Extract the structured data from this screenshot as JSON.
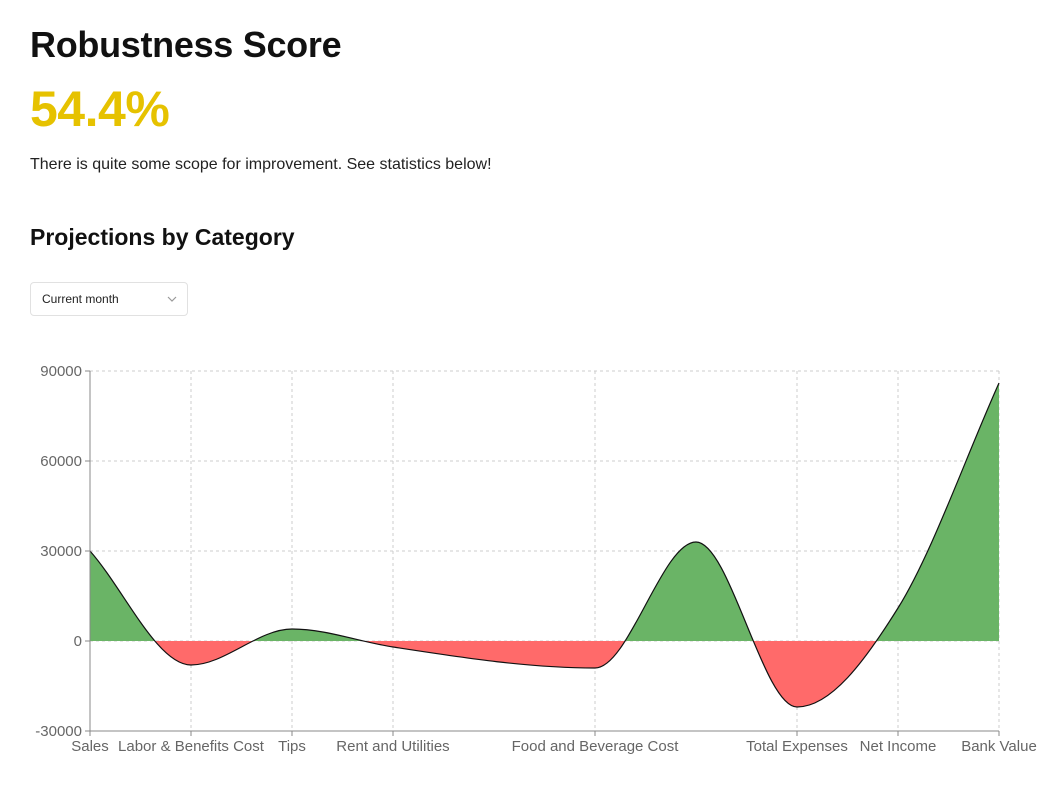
{
  "header": {
    "title": "Robustness Score",
    "score": "54.4%",
    "message": "There is quite some scope for improvement. See statistics below!"
  },
  "projections": {
    "section_title": "Projections by Category",
    "period_select": {
      "selected": "Current month"
    }
  },
  "colors": {
    "score": "#e6c200",
    "positive": "#6ab466",
    "negative": "#ff6a6a",
    "grid": "#cccccc",
    "axis_text": "#666666"
  },
  "chart_data": {
    "type": "area",
    "categories": [
      "Sales",
      "Labor & Benefits Cost",
      "Tips",
      "Rent and Utilities",
      "Food and Beverage Cost",
      "Total Expenses",
      "Net Income",
      "Bank Value"
    ],
    "x": [
      0,
      1,
      2,
      3,
      5,
      7,
      8,
      9
    ],
    "series": [
      {
        "name": "Projection",
        "values": [
          30000,
          -8000,
          4000,
          -2000,
          -9000,
          -22000,
          11000,
          86000
        ]
      }
    ],
    "control_points": [
      {
        "x": 6,
        "y": 33000
      }
    ],
    "ylim": [
      -30000,
      90000
    ],
    "yticks": [
      -30000,
      0,
      30000,
      60000,
      90000
    ],
    "ytick_labels": [
      "-30000",
      "0",
      "30000",
      "60000",
      "90000"
    ],
    "xlim": [
      0,
      9
    ],
    "grid": true,
    "title": "",
    "xlabel": "",
    "ylabel": ""
  }
}
